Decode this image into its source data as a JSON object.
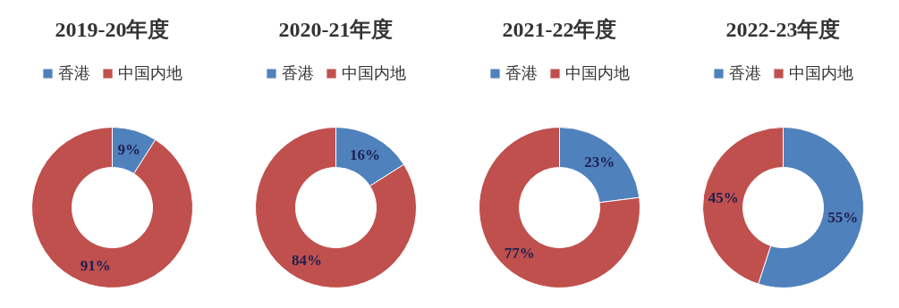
{
  "chart_data": [
    {
      "type": "donut",
      "title": "2019-20年度",
      "categories": [
        "香港",
        "中国内地"
      ],
      "values": [
        9,
        91
      ],
      "colors": [
        "#4f81bd",
        "#c0504d"
      ],
      "value_labels": [
        "9%",
        "91%"
      ],
      "legend": "top"
    },
    {
      "type": "donut",
      "title": "2020-21年度",
      "categories": [
        "香港",
        "中国内地"
      ],
      "values": [
        16,
        84
      ],
      "colors": [
        "#4f81bd",
        "#c0504d"
      ],
      "value_labels": [
        "16%",
        "84%"
      ],
      "legend": "top"
    },
    {
      "type": "donut",
      "title": "2021-22年度",
      "categories": [
        "香港",
        "中国内地"
      ],
      "values": [
        23,
        77
      ],
      "colors": [
        "#4f81bd",
        "#c0504d"
      ],
      "value_labels": [
        "23%",
        "77%"
      ],
      "legend": "top"
    },
    {
      "type": "donut",
      "title": "2022-23年度",
      "categories": [
        "香港",
        "中国内地"
      ],
      "values": [
        55,
        45
      ],
      "colors": [
        "#4f81bd",
        "#c0504d"
      ],
      "value_labels": [
        "55%",
        "45%"
      ],
      "legend": "top"
    }
  ]
}
